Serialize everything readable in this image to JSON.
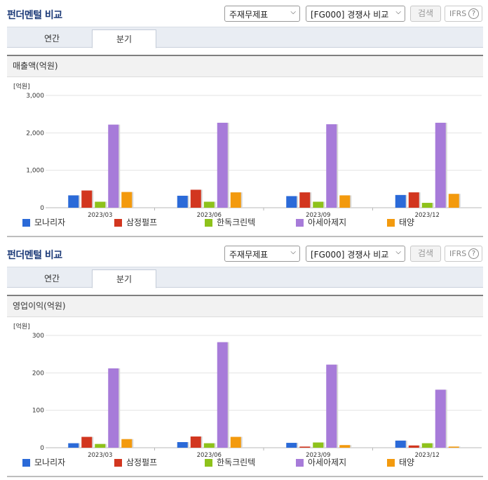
{
  "panels": [
    {
      "title": "펀더멘털 비교",
      "select_statement": "주재무제표",
      "select_group": "[FG000] 경쟁사 비교",
      "search_label": "검색",
      "ifrs_label": "IFRS",
      "tabs": [
        {
          "label": "연간"
        },
        {
          "label": "분기"
        }
      ],
      "section_title": "매출액(억원)",
      "chart_data": {
        "type": "bar",
        "unit_label": "[억원]",
        "categories": [
          "2023/03",
          "2023/06",
          "2023/09",
          "2023/12"
        ],
        "ylim": [
          0,
          3000
        ],
        "yticks": [
          0,
          1000,
          2000,
          3000
        ],
        "ytick_labels": [
          "0",
          "1,000",
          "2,000",
          "3,000"
        ],
        "legend_position": "bottom",
        "series": [
          {
            "name": "모나리자",
            "color": "#2b6ad8",
            "values": [
              330,
              320,
              310,
              340
            ]
          },
          {
            "name": "삼정펄프",
            "color": "#d2361f",
            "values": [
              460,
              480,
              410,
              410
            ]
          },
          {
            "name": "한독크린텍",
            "color": "#8ec21b",
            "values": [
              160,
              160,
              160,
              130
            ]
          },
          {
            "name": "아세아제지",
            "color": "#a77bd9",
            "values": [
              2220,
              2270,
              2230,
              2270
            ]
          },
          {
            "name": "태양",
            "color": "#f39a0e",
            "values": [
              420,
              410,
              330,
              370
            ]
          }
        ]
      }
    },
    {
      "title": "펀더멘털 비교",
      "select_statement": "주재무제표",
      "select_group": "[FG000] 경쟁사 비교",
      "search_label": "검색",
      "ifrs_label": "IFRS",
      "tabs": [
        {
          "label": "연간"
        },
        {
          "label": "분기"
        }
      ],
      "section_title": "영업이익(억원)",
      "chart_data": {
        "type": "bar",
        "unit_label": "[억원]",
        "categories": [
          "2023/03",
          "2023/06",
          "2023/09",
          "2023/12"
        ],
        "ylim": [
          0,
          300
        ],
        "yticks": [
          0,
          100,
          200,
          300
        ],
        "ytick_labels": [
          "0",
          "100",
          "200",
          "300"
        ],
        "legend_position": "bottom",
        "series": [
          {
            "name": "모나리자",
            "color": "#2b6ad8",
            "values": [
              12,
              15,
              13,
              19
            ]
          },
          {
            "name": "삼정펄프",
            "color": "#d2361f",
            "values": [
              29,
              30,
              3,
              6
            ]
          },
          {
            "name": "한독크린텍",
            "color": "#8ec21b",
            "values": [
              10,
              12,
              14,
              12
            ]
          },
          {
            "name": "아세아제지",
            "color": "#a77bd9",
            "values": [
              212,
              282,
              222,
              155
            ]
          },
          {
            "name": "태양",
            "color": "#f39a0e",
            "values": [
              23,
              29,
              7,
              3
            ]
          }
        ]
      }
    }
  ]
}
